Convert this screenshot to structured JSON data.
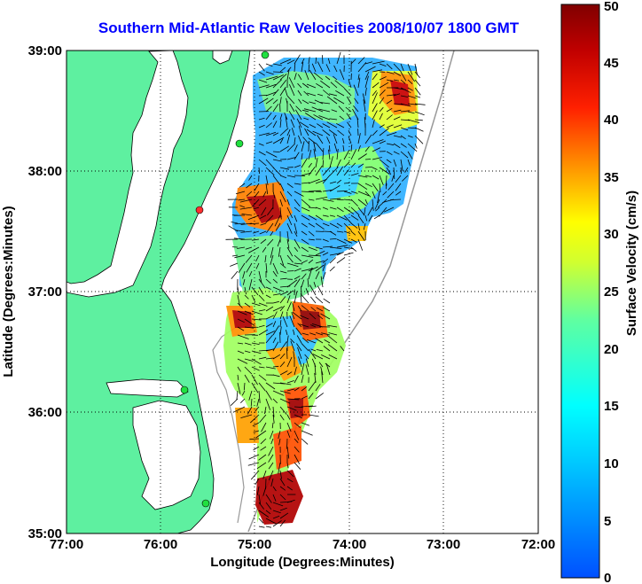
{
  "title": "Southern Mid-Atlantic Raw Velocities 2008/10/07 1800 GMT",
  "x_axis": {
    "label": "Longitude (Degrees:Minutes)",
    "ticks": [
      "77:00",
      "76:00",
      "75:00",
      "74:00",
      "73:00",
      "72:00"
    ]
  },
  "y_axis": {
    "label": "Latitude (Degrees:Minutes)",
    "ticks": [
      "39:00",
      "38:00",
      "37:00",
      "36:00",
      "35:00"
    ]
  },
  "colorbar": {
    "label": "Surface Velocity (cm/s)",
    "ticks": [
      "0",
      "5",
      "10",
      "15",
      "20",
      "25",
      "30",
      "35",
      "40",
      "45",
      "50"
    ],
    "min": 0,
    "max": 50
  },
  "colors": {
    "land": "#5ef0a0",
    "title": "#0000ff",
    "grid": "#000000"
  },
  "map_extent": {
    "lon_min": -77,
    "lon_max": -72,
    "lat_min": 35,
    "lat_max": 39
  }
}
